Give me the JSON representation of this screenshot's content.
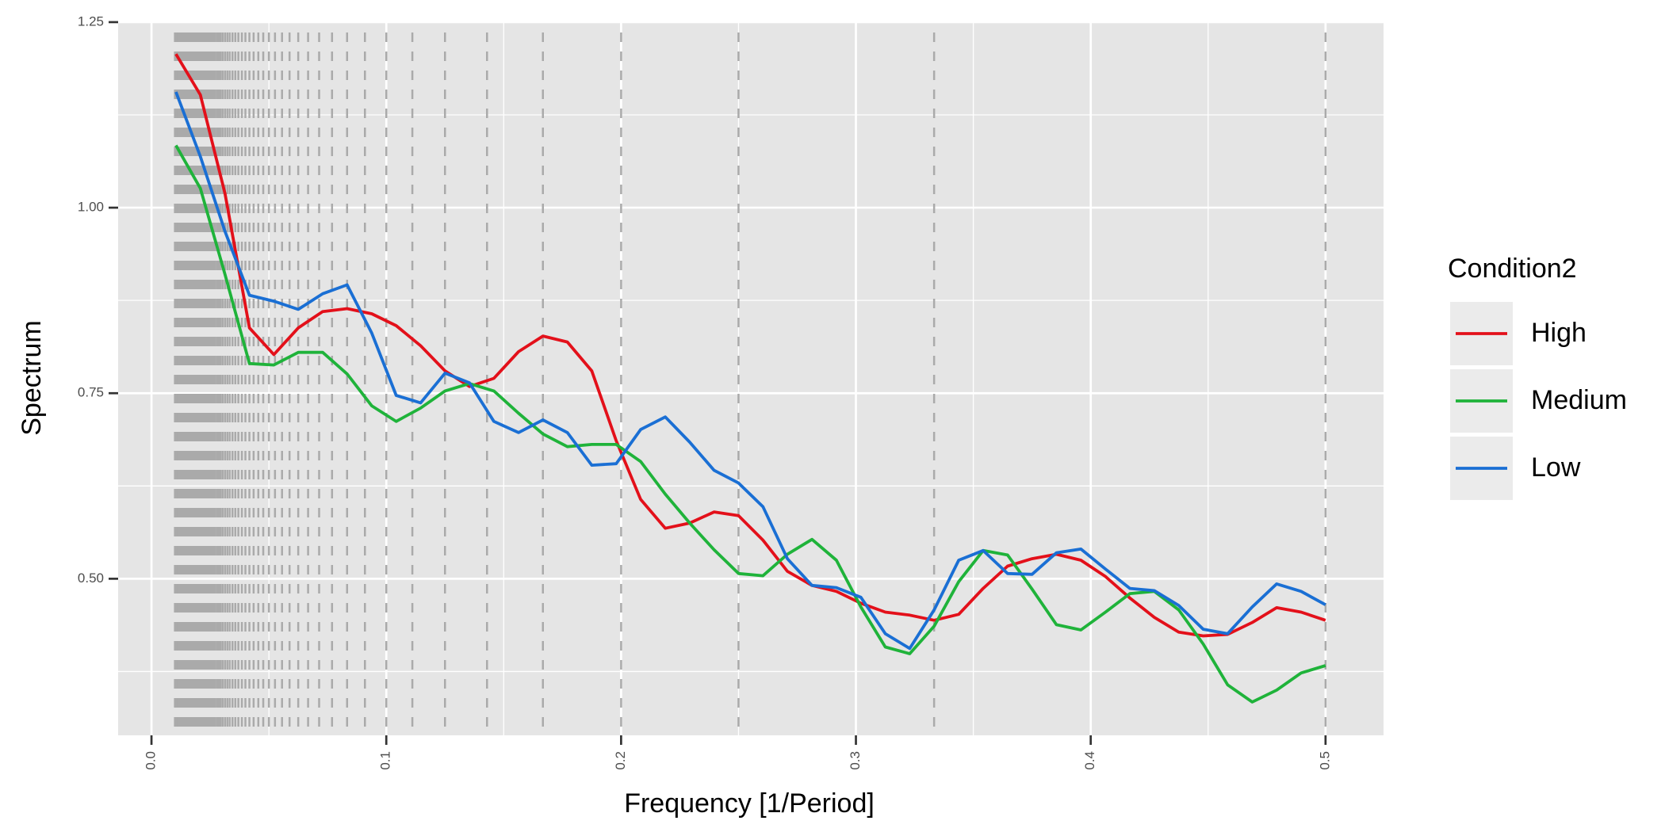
{
  "chart_data": {
    "type": "line",
    "xlabel": "Frequency [1/Period]",
    "ylabel": "Spectrum",
    "legend_title": "Condition2",
    "legend": "right",
    "grid": true,
    "xlim": [
      -0.0142,
      0.5247
    ],
    "ylim": [
      0.289,
      1.251
    ],
    "xticks": [
      {
        "value": 0,
        "label": "0.0"
      },
      0.1,
      0.2,
      0.3,
      0.4,
      0.5
    ],
    "yticks": [
      {
        "value": 0.5,
        "label": "0.50"
      },
      0.75,
      {
        "value": 1,
        "label": "1.00"
      },
      1.25
    ],
    "xminorticks": [
      0.05,
      0.15,
      0.25,
      0.35,
      0.45
    ],
    "yminorticks": [
      0.375,
      0.625,
      0.875,
      1.125
    ],
    "vlines": [
      0.5,
      0.3333,
      0.25,
      0.2,
      0.1667,
      0.1429,
      0.125,
      0.1111,
      0.1,
      0.0909,
      0.0833,
      0.0769,
      0.0714,
      0.0667,
      0.0625,
      0.0588,
      0.0556,
      0.0526,
      0.05,
      0.0476,
      0.0455,
      0.0435,
      0.0417,
      0.04,
      0.0385,
      0.037,
      0.0357,
      0.0345,
      0.0333,
      0.0323,
      0.0313,
      0.0303,
      0.0294,
      0.0286,
      0.0278,
      0.027,
      0.0263,
      0.0256,
      0.025,
      0.0244,
      0.0238,
      0.0233,
      0.0227,
      0.0222,
      0.0217,
      0.0213,
      0.0208,
      0.0204,
      0.02,
      0.0196,
      0.0192,
      0.0189,
      0.0185,
      0.0182,
      0.0179,
      0.0175,
      0.0172,
      0.0169,
      0.0167,
      0.0164,
      0.0161,
      0.0159,
      0.0156,
      0.0154,
      0.0152,
      0.0149,
      0.0147,
      0.0145,
      0.0143,
      0.0141,
      0.0139,
      0.0137,
      0.0135,
      0.0133,
      0.0132,
      0.013,
      0.0128,
      0.0127,
      0.0125,
      0.0123,
      0.0122,
      0.012,
      0.0119,
      0.0118,
      0.0116,
      0.0115,
      0.0114,
      0.0112,
      0.0111,
      0.011,
      0.0109,
      0.0108,
      0.0106,
      0.0105,
      0.0104,
      0.0103,
      0.0102,
      0.0101,
      0.01
    ],
    "vline_color": "#aaaaaa",
    "x": [
      0.0104,
      0.0208,
      0.0313,
      0.0417,
      0.0521,
      0.0625,
      0.0729,
      0.0833,
      0.0938,
      0.1042,
      0.1146,
      0.125,
      0.1354,
      0.1458,
      0.1563,
      0.1667,
      0.1771,
      0.1875,
      0.1979,
      0.2083,
      0.2188,
      0.2292,
      0.2396,
      0.25,
      0.2604,
      0.2708,
      0.2813,
      0.2917,
      0.3021,
      0.3125,
      0.3229,
      0.3333,
      0.3438,
      0.3542,
      0.3646,
      0.375,
      0.3854,
      0.3958,
      0.4063,
      0.4167,
      0.4271,
      0.4375,
      0.4479,
      0.4583,
      0.4688,
      0.4792,
      0.4896,
      0.5
    ],
    "series": [
      {
        "name": "High",
        "color": "#e3101a",
        "values": [
          1.207,
          1.152,
          1.019,
          0.838,
          0.802,
          0.838,
          0.86,
          0.864,
          0.857,
          0.841,
          0.814,
          0.78,
          0.759,
          0.77,
          0.806,
          0.827,
          0.819,
          0.78,
          0.686,
          0.607,
          0.568,
          0.575,
          0.59,
          0.585,
          0.552,
          0.51,
          0.491,
          0.483,
          0.467,
          0.455,
          0.451,
          0.444,
          0.452,
          0.487,
          0.517,
          0.527,
          0.533,
          0.525,
          0.503,
          0.474,
          0.448,
          0.428,
          0.423,
          0.425,
          0.441,
          0.461,
          0.455,
          0.444
        ]
      },
      {
        "name": "Medium",
        "color": "#1fb33a",
        "values": [
          1.084,
          1.026,
          0.91,
          0.79,
          0.788,
          0.805,
          0.805,
          0.776,
          0.733,
          0.712,
          0.73,
          0.753,
          0.763,
          0.753,
          0.723,
          0.695,
          0.678,
          0.681,
          0.681,
          0.658,
          0.614,
          0.575,
          0.539,
          0.507,
          0.504,
          0.533,
          0.553,
          0.525,
          0.462,
          0.408,
          0.399,
          0.436,
          0.496,
          0.538,
          0.532,
          0.486,
          0.438,
          0.431,
          0.455,
          0.48,
          0.483,
          0.458,
          0.412,
          0.357,
          0.334,
          0.35,
          0.373,
          0.383
        ]
      },
      {
        "name": "Low",
        "color": "#1a6fd4",
        "values": [
          1.156,
          1.069,
          0.968,
          0.882,
          0.874,
          0.863,
          0.884,
          0.896,
          0.831,
          0.747,
          0.737,
          0.777,
          0.764,
          0.712,
          0.697,
          0.714,
          0.697,
          0.653,
          0.655,
          0.701,
          0.718,
          0.684,
          0.646,
          0.629,
          0.597,
          0.527,
          0.491,
          0.488,
          0.475,
          0.426,
          0.406,
          0.458,
          0.525,
          0.538,
          0.507,
          0.506,
          0.535,
          0.54,
          0.513,
          0.487,
          0.484,
          0.464,
          0.432,
          0.426,
          0.462,
          0.493,
          0.483,
          0.465
        ]
      }
    ]
  }
}
